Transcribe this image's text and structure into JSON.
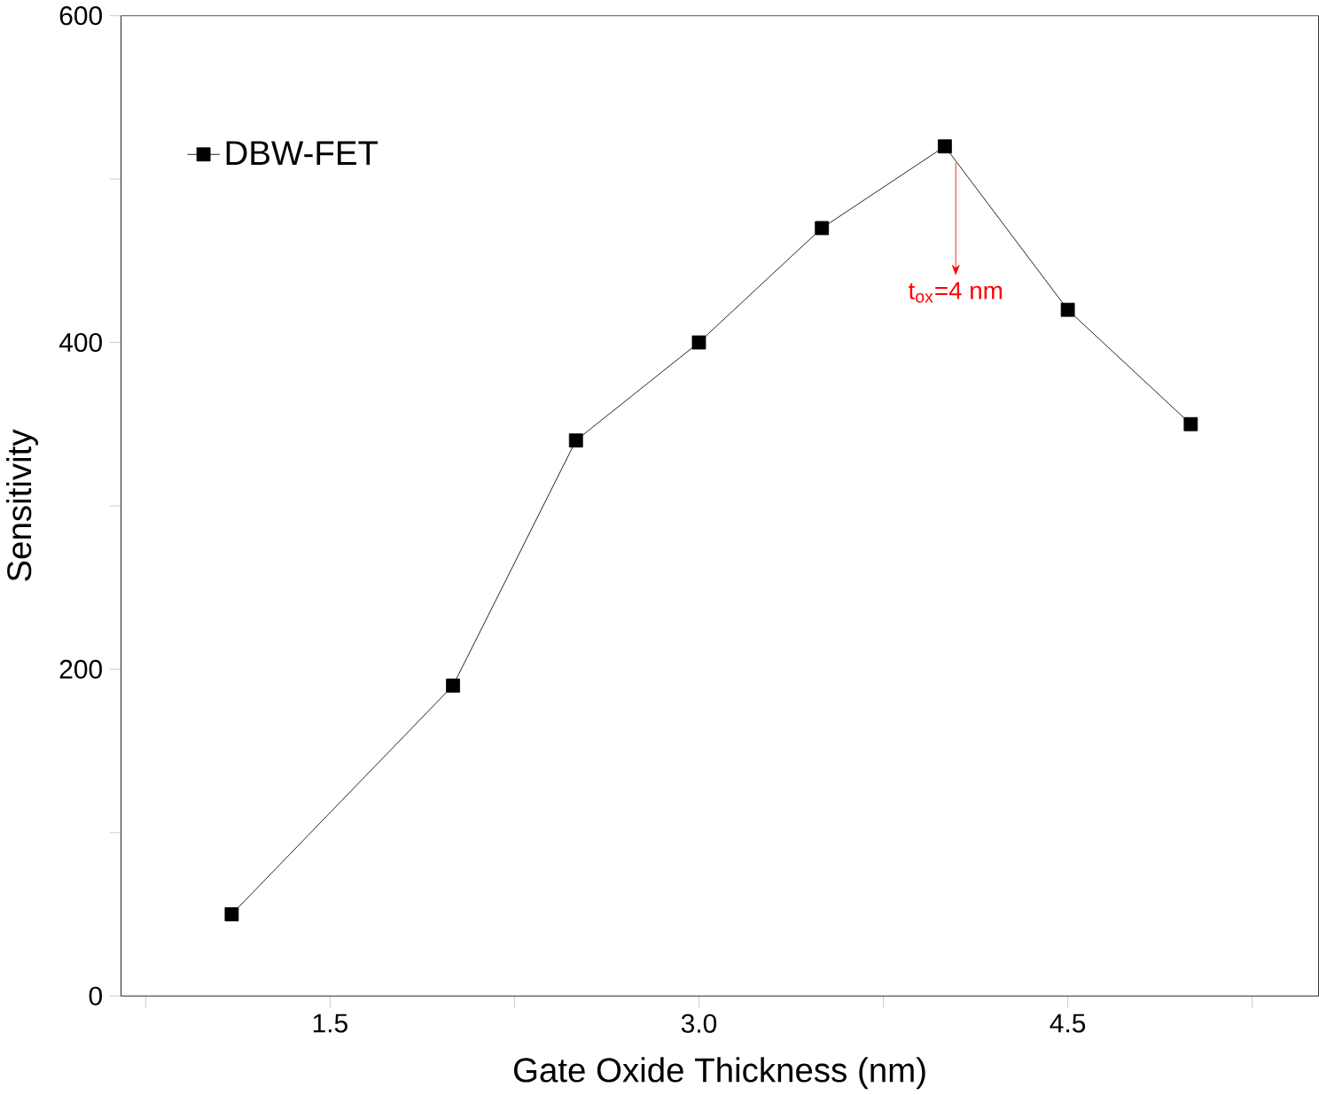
{
  "chart_data": {
    "type": "line",
    "xlabel": "Gate Oxide Thickness (nm)",
    "ylabel": "Sensitivity",
    "x": [
      1.1,
      2.0,
      2.5,
      3.0,
      3.5,
      4.0,
      4.5,
      5.0
    ],
    "series": [
      {
        "name": "DBW-FET",
        "color": "#000000",
        "values": [
          50,
          190,
          340,
          400,
          470,
          520,
          420,
          350
        ]
      }
    ],
    "xlim": [
      0.65,
      5.52
    ],
    "xticks": [
      {
        "value": 0.75,
        "label": null
      },
      1.5,
      {
        "value": 2.25,
        "label": null
      },
      {
        "value": 3,
        "label": "3.0"
      },
      {
        "value": 3.75,
        "label": null
      },
      4.5,
      {
        "value": 5.25,
        "label": null
      }
    ],
    "ylim": [
      0,
      600
    ],
    "yticks": [
      0,
      {
        "value": 100,
        "label": null
      },
      200,
      {
        "value": 300,
        "label": null
      },
      400,
      {
        "value": 500,
        "label": null
      },
      600
    ],
    "annotations": [
      "t$_{ox}$=4 nm"
    ],
    "marker": "square",
    "line_style": "solid",
    "legend": "top left",
    "grid": false
  }
}
